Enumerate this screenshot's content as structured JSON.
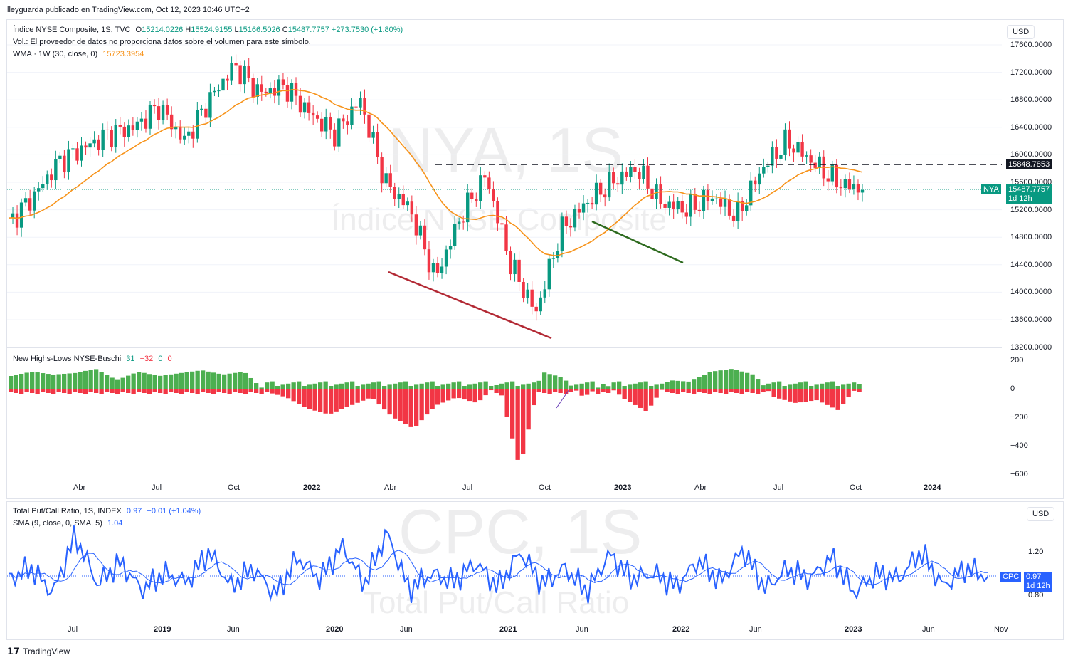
{
  "header": {
    "author_line": "lleyguarda publicado en TradingView.com, Oct 12, 2023 10:46 UTC+2"
  },
  "main_pane": {
    "symbol_line_prefix": "Índice NYSE Composite, 1S, TVC",
    "ohlc": {
      "o_label": "O",
      "o": "15214.0226",
      "h_label": "H",
      "h": "15524.9155",
      "l_label": "L",
      "l": "15166.5026",
      "c_label": "C",
      "c": "15487.7757",
      "change": "+273.7530 (+1.80%)"
    },
    "vol_line": "Vol.: El proveedor de datos no proporciona datos sobre el volumen para este símbolo.",
    "wma_line_prefix": "WMA · 1W (30, close, 0)",
    "wma_value": "15723.3954",
    "currency": "USD",
    "watermark_symbol": "NYA, 1S",
    "watermark_name": "Índice NYSE Composite",
    "y_ticks": [
      "17600.0000",
      "17200.0000",
      "16800.0000",
      "16400.0000",
      "16000.0000",
      "15600.0000",
      "15200.0000",
      "14800.0000",
      "14400.0000",
      "14000.0000",
      "13600.0000",
      "13200.0000"
    ],
    "hline_value": "15848.7853",
    "last_tag_symbol": "NYA",
    "last_tag_price": "15487.7757",
    "last_tag_countdown": "1d 12h"
  },
  "hl_pane": {
    "legend_name": "New Highs-Lows NYSE-Buschi",
    "v1": "31",
    "v2": "−32",
    "v3": "0",
    "v4": "0",
    "y_ticks": [
      "200",
      "0",
      "−200",
      "−400",
      "−600"
    ]
  },
  "x_axis_top": [
    "Abr",
    "Jul",
    "Oct",
    "2022",
    "Abr",
    "Jul",
    "Oct",
    "2023",
    "Abr",
    "Jul",
    "Oct",
    "2024"
  ],
  "cpc_pane": {
    "legend_prefix": "Total Put/Call Ratio, 1S, INDEX",
    "value": "0.97",
    "change": "+0.01 (+1.04%)",
    "sma_prefix": "SMA (9, close, 0, SMA, 5)",
    "sma_value": "1.04",
    "currency": "USD",
    "watermark_symbol": "CPC, 1S",
    "watermark_name": "Total Put/Call Ratio",
    "y_ticks": [
      "1.20",
      "0.80"
    ],
    "last_tag_symbol": "CPC",
    "last_tag_value": "0.97",
    "last_tag_countdown": "1d 12h"
  },
  "x_axis_bottom": [
    "Jul",
    "2019",
    "Jun",
    "2020",
    "Jun",
    "2021",
    "Jun",
    "2022",
    "Jun",
    "2023",
    "Jun",
    "Nov"
  ],
  "footer": {
    "brand": "TradingView"
  },
  "colors": {
    "up": "#089981",
    "down": "#f23645",
    "wma": "#f7931a",
    "cpc": "#2962ff",
    "hl_pos": "#4caf50",
    "hl_neg": "#f23645",
    "trend_red": "#b22833",
    "trend_green": "#2e6b1f"
  },
  "chart_data": [
    {
      "type": "candlestick",
      "title": "Índice NYSE Composite, 1S, TVC",
      "x": [
        "2021-03-01",
        "2021-03-29",
        "2021-04-26",
        "2021-05-24",
        "2021-06-21",
        "2021-07-19",
        "2021-08-16",
        "2021-09-13",
        "2021-10-11",
        "2021-11-08",
        "2021-12-06",
        "2022-01-03",
        "2022-01-31",
        "2022-02-28",
        "2022-03-28",
        "2022-04-25",
        "2022-05-23",
        "2022-06-20",
        "2022-07-18",
        "2022-08-15",
        "2022-09-12",
        "2022-10-10",
        "2022-11-07",
        "2022-12-05",
        "2023-01-02",
        "2023-01-30",
        "2023-02-27",
        "2023-03-27",
        "2023-04-24",
        "2023-05-22",
        "2023-06-19",
        "2023-07-17",
        "2023-08-14",
        "2023-09-11",
        "2023-10-09"
      ],
      "series": [
        {
          "name": "close",
          "values": [
            15000,
            15400,
            15900,
            16100,
            16300,
            16400,
            16700,
            16200,
            16800,
            17300,
            16900,
            17000,
            16600,
            16300,
            16800,
            15600,
            15200,
            14200,
            15100,
            15700,
            14400,
            13700,
            14900,
            15300,
            15600,
            15800,
            15300,
            15200,
            15400,
            15100,
            15800,
            16200,
            15900,
            15600,
            15487.7757
          ]
        }
      ],
      "wma": {
        "name": "WMA · 1W (30, close, 0)",
        "last": 15723.3954
      },
      "hline": 15848.7853,
      "ylim": [
        13200,
        17600
      ]
    },
    {
      "type": "bar",
      "title": "New Highs-Lows NYSE-Buschi",
      "values": [
        90,
        120,
        100,
        110,
        140,
        60,
        120,
        90,
        110,
        130,
        100,
        120,
        -20,
        -60,
        -140,
        -180,
        -120,
        -60,
        -200,
        -280,
        -120,
        -60,
        -100,
        40,
        -560,
        120,
        80,
        -60,
        40,
        -80,
        -160,
        60,
        50,
        120,
        140,
        100,
        -60,
        -100,
        -80,
        -150,
        31
      ],
      "ylim": [
        -600,
        200
      ]
    },
    {
      "type": "line",
      "title": "Total Put/Call Ratio, 1S, INDEX",
      "values": [
        0.95,
        1.05,
        0.82,
        1.35,
        0.9,
        1.1,
        0.85,
        1.0,
        0.92,
        1.2,
        0.88,
        1.05,
        0.8,
        1.15,
        0.95,
        1.25,
        0.9,
        1.38,
        0.85,
        1.0,
        0.92,
        1.1,
        0.87,
        1.2,
        0.9,
        1.05,
        0.83,
        1.18,
        0.95,
        1.0,
        0.88,
        1.12,
        0.92,
        1.22,
        0.86,
        1.04,
        0.95,
        1.15,
        0.82,
        1.0,
        0.95,
        1.2,
        0.88,
        1.05,
        0.97
      ],
      "sma_last": 1.04,
      "last": 0.97,
      "ylim": [
        0.7,
        1.4
      ]
    }
  ]
}
